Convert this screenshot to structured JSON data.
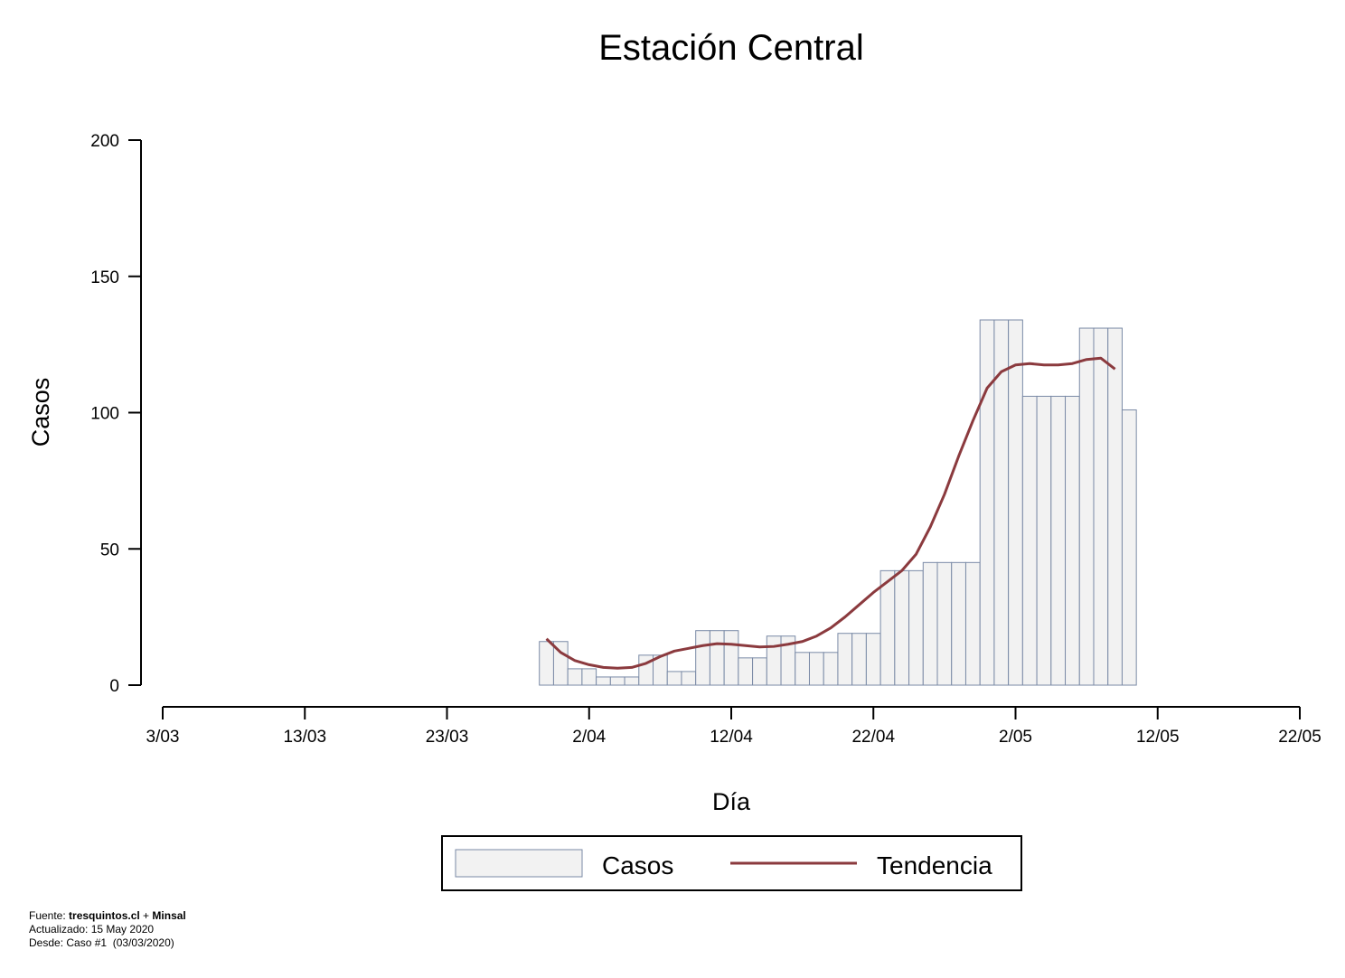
{
  "chart_data": {
    "type": "bar",
    "title": "Estación Central",
    "xlabel": "Día",
    "ylabel": "Casos",
    "ylim": [
      0,
      200
    ],
    "yticks": [
      0,
      50,
      100,
      150,
      200
    ],
    "xlim_days": [
      0,
      80
    ],
    "xticks": [
      {
        "day": 0,
        "label": "3/03"
      },
      {
        "day": 10,
        "label": "13/03"
      },
      {
        "day": 20,
        "label": "23/03"
      },
      {
        "day": 30,
        "label": "2/04"
      },
      {
        "day": 40,
        "label": "12/04"
      },
      {
        "day": 50,
        "label": "22/04"
      },
      {
        "day": 60,
        "label": "2/05"
      },
      {
        "day": 70,
        "label": "12/05"
      },
      {
        "day": 80,
        "label": "22/05"
      }
    ],
    "x": [
      "30/03",
      "31/03",
      "1/04",
      "2/04",
      "3/04",
      "4/04",
      "5/04",
      "6/04",
      "7/04",
      "8/04",
      "9/04",
      "10/04",
      "11/04",
      "12/04",
      "13/04",
      "14/04",
      "15/04",
      "16/04",
      "17/04",
      "18/04",
      "19/04",
      "20/04",
      "21/04",
      "22/04",
      "23/04",
      "24/04",
      "25/04",
      "26/04",
      "27/04",
      "28/04",
      "29/04",
      "30/04",
      "1/05",
      "2/05",
      "3/05",
      "4/05",
      "5/05",
      "6/05",
      "7/05",
      "8/05",
      "9/05",
      "10/05",
      "11/05"
    ],
    "series": [
      {
        "name": "Casos",
        "type": "bar",
        "values": [
          16,
          16,
          6,
          6,
          3,
          3,
          3,
          11,
          11,
          5,
          5,
          20,
          20,
          20,
          10,
          10,
          18,
          18,
          12,
          12,
          12,
          19,
          19,
          19,
          42,
          42,
          42,
          45,
          45,
          45,
          45,
          134,
          134,
          134,
          106,
          106,
          106,
          106,
          131,
          131,
          131,
          101,
          null
        ]
      },
      {
        "name": "Tendencia",
        "type": "line",
        "values": [
          17,
          12,
          9,
          7.5,
          6.5,
          6.2,
          6.5,
          8,
          10.5,
          12.5,
          13.5,
          14.5,
          15.2,
          15,
          14.5,
          14,
          14.2,
          15,
          16,
          18,
          21,
          25,
          29.5,
          34,
          38,
          42,
          48,
          58,
          70,
          84,
          97,
          109,
          115,
          117.5,
          118,
          117.5,
          117.5,
          118,
          119.5,
          120,
          116,
          null,
          null
        ]
      }
    ],
    "colors": {
      "bar_fill": "#f2f2f2",
      "bar_stroke": "#7a8aa6",
      "line": "#8b3a3e"
    },
    "legend": {
      "placement": "bottom-center",
      "entries": [
        "Casos",
        "Tendencia"
      ]
    },
    "grid": false
  },
  "footer": {
    "source_prefix": "Fuente: ",
    "source_1": "tresquintos.cl",
    "source_sep": " + ",
    "source_2": "Minsal",
    "updated": "Actualizado: 15 May 2020",
    "since": "Desde: Caso #1  (03/03/2020)"
  }
}
